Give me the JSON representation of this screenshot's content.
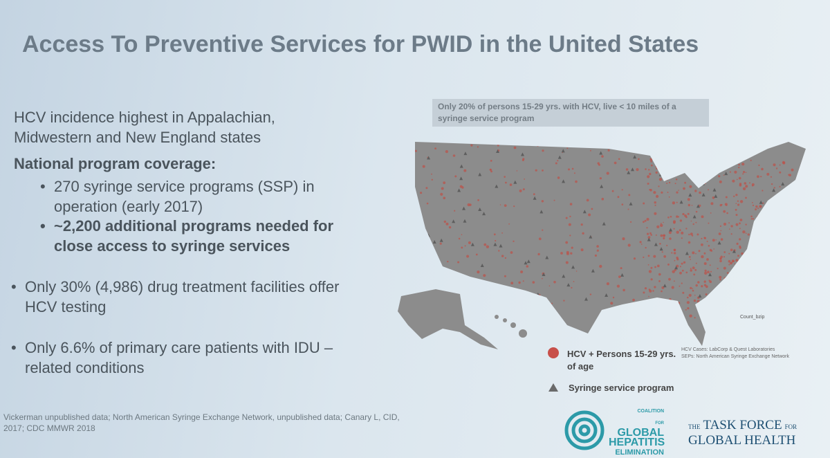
{
  "title": "Access To Preventive Services for   PWID in the United States",
  "intro": "HCV incidence highest in Appalachian, Midwestern and New England states",
  "coverage": {
    "heading": "National program coverage:",
    "items": [
      "270  syringe service programs (SSP) in operation (early 2017)",
      "~2,200 additional programs needed for close access to syringe services"
    ]
  },
  "facts": [
    "Only 30% (4,986) drug treatment facilities offer HCV testing",
    "Only 6.6% of  primary care patients with IDU – related conditions"
  ],
  "map": {
    "note": "Only 20% of  persons 15-29 yrs. with HCV, live < 10 miles of a syringe service program",
    "count_label": "Count_bzip",
    "legend": [
      "HCV + Persons 15-29 yrs. of age",
      "Syringe service program"
    ],
    "sources": [
      "HCV Cases: LabCorp & Quest Laboratories",
      "SEPs: North American Syringe Exchange Network"
    ]
  },
  "citation": "Vickerman unpublished data; North American Syringe Exchange Network,  unpublished data;  Canary L, CID,  2017; CDC MMWR 2018",
  "logos": {
    "coalition": [
      "COALITION",
      "FOR",
      "GLOBAL",
      "HEPATITIS",
      "ELIMINATION"
    ],
    "task_force": [
      "THE",
      "TASK FORCE",
      "FOR",
      "GLOBAL HEALTH"
    ]
  }
}
